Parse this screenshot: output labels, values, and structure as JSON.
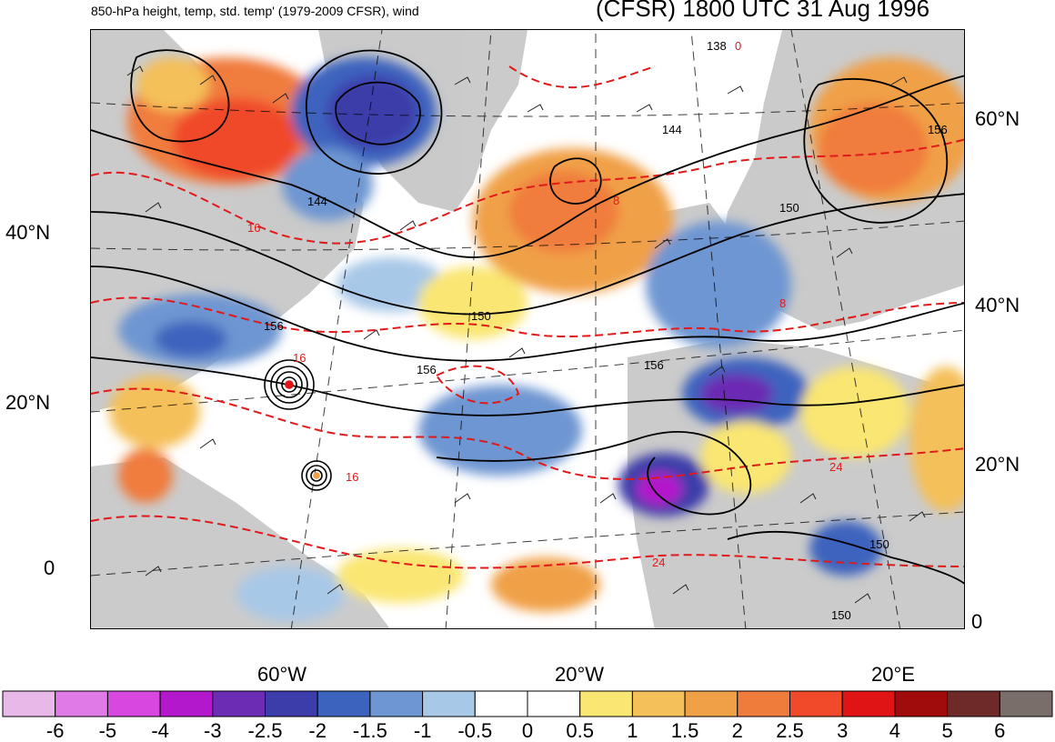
{
  "title": {
    "left": "850-hPa height, temp, std. temp' (1979-2009 CFSR), wind",
    "right": "(CFSR) 1800 UTC 31 Aug 1996"
  },
  "axes": {
    "left_lat_labels": [
      "40°N",
      "20°N",
      "0"
    ],
    "right_lat_labels": [
      "60°N",
      "40°N",
      "20°N",
      "0"
    ],
    "bottom_lon_labels": [
      "60°W",
      "20°W",
      "20°E"
    ]
  },
  "contour_labels": {
    "height": [
      "138",
      "144",
      "144",
      "150",
      "150",
      "156",
      "156",
      "156",
      "156",
      "150",
      "150"
    ],
    "temperature": [
      "0",
      "8",
      "16",
      "16",
      "16",
      "24",
      "24",
      "8"
    ]
  },
  "colorbar": {
    "ticks": [
      "-6",
      "-5",
      "-4",
      "-3",
      "-2.5",
      "-2",
      "-1.5",
      "-1",
      "-0.5",
      "0",
      "0.5",
      "1",
      "1.5",
      "2",
      "2.5",
      "3",
      "4",
      "5",
      "6"
    ],
    "colors": [
      "#e8b8e8",
      "#e07ae6",
      "#d848e0",
      "#b418cc",
      "#6c2cb4",
      "#3c3caa",
      "#3c64be",
      "#6e96d2",
      "#a8c8e8",
      "#ffffff",
      "#ffffff",
      "#fae672",
      "#f4c05a",
      "#f0a046",
      "#f07c3c",
      "#f04a2a",
      "#e01414",
      "#a00c0c",
      "#6e2a28",
      "#7a6e6a"
    ]
  }
}
